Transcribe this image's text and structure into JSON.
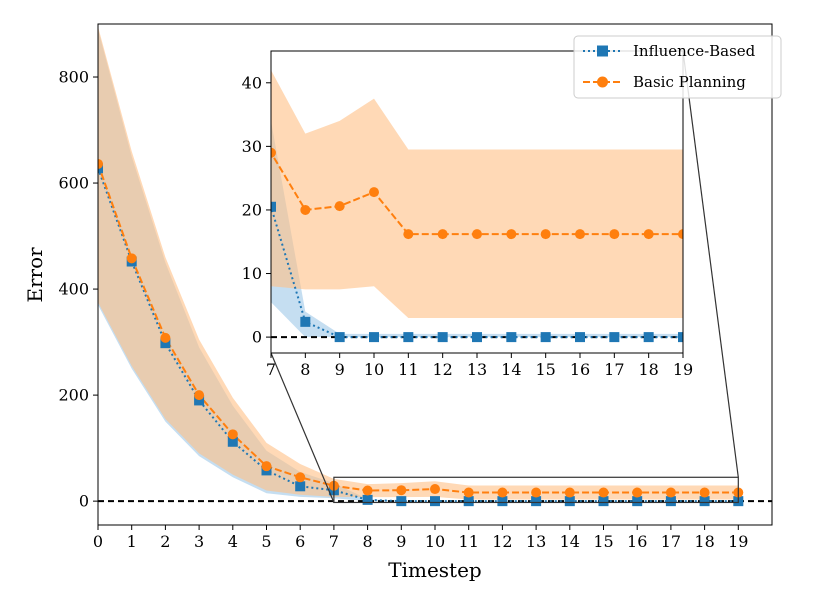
{
  "chart_data": [
    {
      "type": "line",
      "xlabel": "Timestep",
      "ylabel": "Error",
      "xlim": [
        0,
        20
      ],
      "ylim": [
        -45,
        900
      ],
      "xticks": [
        0,
        1,
        2,
        3,
        4,
        5,
        6,
        7,
        8,
        9,
        10,
        11,
        12,
        13,
        14,
        15,
        16,
        17,
        18,
        19
      ],
      "yticks": [
        0,
        200,
        400,
        600,
        800
      ],
      "reference_line_y": 0,
      "legend": {
        "placement": "top-right",
        "entries": [
          "Influence-Based",
          "Basic Planning"
        ]
      },
      "x": [
        0,
        1,
        2,
        3,
        4,
        5,
        6,
        7,
        8,
        9,
        10,
        11,
        12,
        13,
        14,
        15,
        16,
        17,
        18,
        19
      ],
      "series": [
        {
          "name": "Influence-Based",
          "color": "#1f77b4",
          "band_color": "#9ec8e8",
          "linestyle": "dotted",
          "marker": "square",
          "values": [
            628,
            452,
            298,
            190,
            112,
            58,
            28,
            20.5,
            2.4,
            0,
            0,
            0,
            0,
            0,
            0,
            0,
            0,
            0,
            0,
            0
          ],
          "band_low": [
            370,
            250,
            150,
            85,
            45,
            15,
            8,
            5.5,
            0,
            0,
            0,
            0,
            0,
            0,
            0,
            0,
            0,
            0,
            0,
            0
          ],
          "band_high": [
            890,
            650,
            450,
            290,
            180,
            95,
            55,
            34,
            4,
            0.5,
            0.5,
            0.5,
            0.5,
            0.5,
            0.5,
            0.5,
            0.5,
            0.5,
            0.5,
            0.5
          ]
        },
        {
          "name": "Basic Planning",
          "color": "#ff7f0e",
          "band_color": "#ffbf86",
          "linestyle": "dashed",
          "marker": "circle",
          "values": [
            636,
            458,
            308,
            200,
            126,
            66,
            45,
            29,
            20,
            20.6,
            22.8,
            16.2,
            16.2,
            16.2,
            16.2,
            16.2,
            16.2,
            16.2,
            16.2,
            16.2
          ],
          "band_low": [
            375,
            255,
            155,
            90,
            50,
            20,
            12,
            8,
            7.5,
            7.5,
            8,
            3,
            3,
            3,
            3,
            3,
            3,
            3,
            3,
            3
          ],
          "band_high": [
            895,
            660,
            460,
            305,
            195,
            110,
            70,
            42,
            32,
            34,
            37.5,
            29.5,
            29.5,
            29.5,
            29.5,
            29.5,
            29.5,
            29.5,
            29.5,
            29.5
          ]
        }
      ]
    },
    {
      "type": "line",
      "role": "inset zoom",
      "xlim": [
        7,
        19
      ],
      "ylim": [
        -2.5,
        45
      ],
      "xticks": [
        7,
        8,
        9,
        10,
        11,
        12,
        13,
        14,
        15,
        16,
        17,
        18,
        19
      ],
      "yticks": [
        0,
        10,
        20,
        30,
        40
      ],
      "reference_line_y": 0
    }
  ]
}
